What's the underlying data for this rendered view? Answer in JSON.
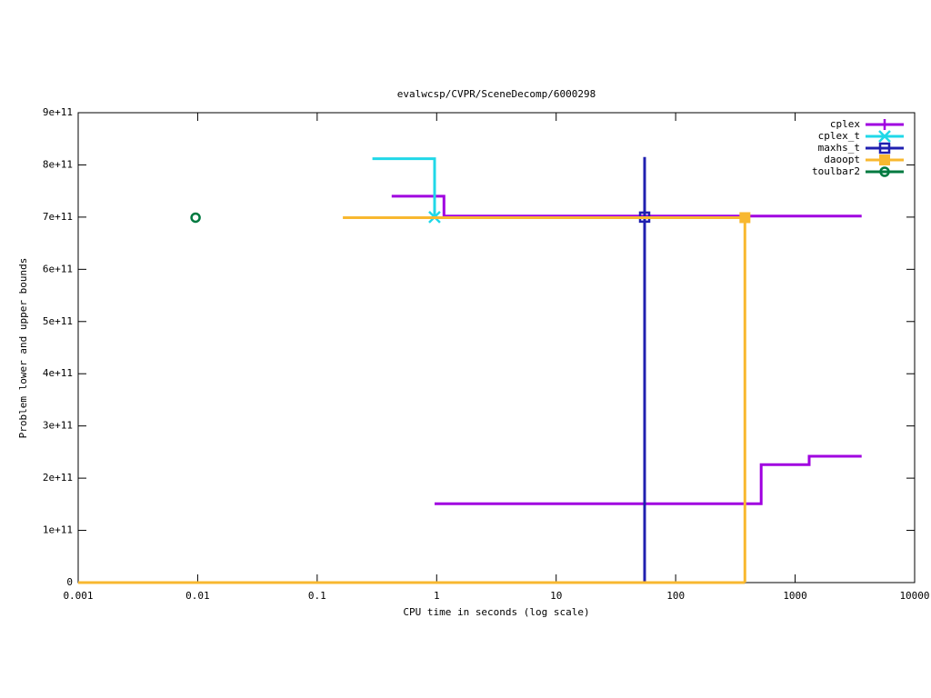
{
  "chart_data": {
    "type": "line",
    "title": "evalwcsp/CVPR/SceneDecomp/6000298",
    "x_label": "CPU time in seconds (log scale)",
    "y_label": "Problem lower and upper bounds",
    "x_scale": "log",
    "xlim": [
      0.001,
      10000
    ],
    "xticks": [
      0.001,
      0.01,
      0.1,
      1,
      10,
      100,
      1000,
      10000
    ],
    "ylim": [
      0,
      900000000000
    ],
    "yticks": [
      0,
      {
        "value": 100000000000,
        "label": "1e+11"
      },
      {
        "value": 200000000000,
        "label": "2e+11"
      },
      {
        "value": 300000000000,
        "label": "3e+11"
      },
      {
        "value": 400000000000,
        "label": "4e+11"
      },
      {
        "value": 500000000000,
        "label": "5e+11"
      },
      {
        "value": 600000000000,
        "label": "6e+11"
      },
      {
        "value": 700000000000,
        "label": "7e+11"
      },
      {
        "value": 800000000000,
        "label": "8e+11"
      },
      {
        "value": 900000000000,
        "label": "9e+11"
      }
    ],
    "legend": "top-right",
    "series": [
      {
        "name": "cplex",
        "color": "#a000e0",
        "point": "plus",
        "x": [
          0.42,
          1.15,
          1.15,
          3600,
          null,
          0.96,
          520,
          520,
          1310,
          1310,
          3600
        ],
        "values": [
          740000000000,
          740000000000,
          702000000000,
          702000000000,
          null,
          151000000000,
          151000000000,
          226000000000,
          226000000000,
          242000000000,
          242000000000
        ]
      },
      {
        "name": "cplex_t",
        "color": "#20d8e8",
        "point": "cross",
        "x": [
          0.29,
          0.96,
          0.96
        ],
        "values": [
          812000000000,
          812000000000,
          700000000000
        ],
        "marker": {
          "x": 0.96,
          "y": 700000000000
        }
      },
      {
        "name": "maxhs_t",
        "color": "#2020b0",
        "point": "square-open",
        "x": [
          55,
          55
        ],
        "values": [
          815000000000,
          0
        ],
        "marker": {
          "x": 55,
          "y": 700000000000
        }
      },
      {
        "name": "daoopt",
        "color": "#f8b830",
        "point": "square",
        "x": [
          0.164,
          380,
          380,
          null,
          0.001,
          380
        ],
        "values": [
          699000000000,
          699000000000,
          0,
          null,
          0,
          0
        ],
        "marker": {
          "x": 380,
          "y": 699000000000
        }
      },
      {
        "name": "toulbar2",
        "color": "#007a40",
        "point": "circle-open",
        "x": [
          0.0096
        ],
        "values": [
          699000000000
        ],
        "marker": {
          "x": 0.0096,
          "y": 699000000000
        }
      }
    ]
  }
}
